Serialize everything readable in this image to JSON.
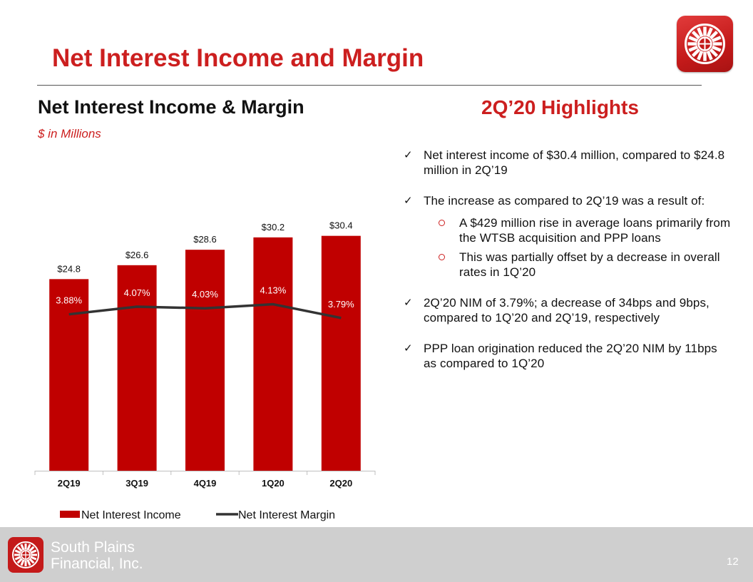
{
  "slide": {
    "title": "Net Interest Income and Margin",
    "left_heading": "Net Interest Income & Margin",
    "left_subheading": "$ in Millions",
    "right_heading": "2Q’20 Highlights",
    "page_number": "12"
  },
  "footer": {
    "company_line1": "South Plains",
    "company_line2": "Financial, Inc."
  },
  "colors": {
    "brand_red": "#cc1f1f",
    "bar_red": "#c00000",
    "line": "#333333",
    "footer_gray": "#cfcfcf"
  },
  "highlights": [
    {
      "text": "Net interest income of $30.4 million, compared to $24.8 million in 2Q’19"
    },
    {
      "text": "The increase as compared to 2Q’19 was a result of:",
      "sub": [
        "A $429 million rise in average loans primarily from the WTSB acquisition and PPP loans",
        "This was partially offset by a decrease in overall rates in 1Q’20"
      ]
    },
    {
      "text": "2Q’20 NIM of 3.79%; a decrease of 34bps and 9bps, compared to 1Q’20 and 2Q’19, respectively"
    },
    {
      "text": "PPP loan origination reduced the 2Q’20 NIM by 11bps as compared to 1Q’20"
    }
  ],
  "chart_data": {
    "type": "bar",
    "categories": [
      "2Q19",
      "3Q19",
      "4Q19",
      "1Q20",
      "2Q20"
    ],
    "series": [
      {
        "name": "Net Interest Income",
        "type": "bar",
        "values": [
          24.8,
          26.6,
          28.6,
          30.2,
          30.4
        ],
        "labels": [
          "$24.8",
          "$26.6",
          "$28.6",
          "$30.2",
          "$30.4"
        ]
      },
      {
        "name": "Net Interest Margin",
        "type": "line",
        "values": [
          3.88,
          4.07,
          4.03,
          4.13,
          3.79
        ],
        "labels": [
          "3.88%",
          "4.07%",
          "4.03%",
          "4.13%",
          "3.79%"
        ]
      }
    ],
    "title": "",
    "xlabel": "",
    "ylabel": "",
    "ylim": [
      0,
      36
    ],
    "y2lim": [
      0,
      6.9
    ],
    "grid": false,
    "legend": "bottom"
  }
}
